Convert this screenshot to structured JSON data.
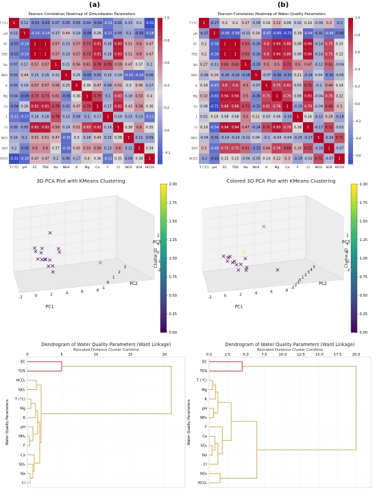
{
  "labels": {
    "panel_a": "(a)",
    "panel_b": "(b)"
  },
  "colors": {
    "heat_low": "#3b4cc0",
    "heat_mid": "#dddddd",
    "heat_high": "#b40426",
    "dendro_tan": "#c8a24a",
    "dendro_red": "#b22222"
  },
  "chart_data": [
    {
      "type": "heatmap",
      "title": "Pearson Correlation Heatmap of Groundwater Parameters",
      "categories": [
        "T (°C)",
        "pH",
        "EC",
        "TDS",
        "Na",
        "NH4",
        "K",
        "Mg",
        "Ca",
        "F",
        "Cl",
        "NO3",
        "SO4",
        "HCO3"
      ],
      "values": [
        [
          1.0,
          0.12,
          -0.03,
          -0.03,
          0.07,
          0.05,
          0.05,
          0.04,
          -0.04,
          -0.11,
          0.05,
          0.15,
          0.2,
          -0.31
        ],
        [
          0.12,
          1.0,
          -0.14,
          -0.14,
          0.17,
          0.44,
          0.19,
          -0.09,
          0.26,
          -0.17,
          0.05,
          0.1,
          -0.05,
          -0.18
        ],
        [
          -0.03,
          -0.14,
          1.0,
          1.0,
          0.57,
          0.15,
          0.57,
          0.73,
          0.91,
          0.16,
          0.93,
          0.51,
          0.6,
          0.47
        ],
        [
          -0.03,
          -0.14,
          1.0,
          1.0,
          0.57,
          0.15,
          0.57,
          0.73,
          0.91,
          0.16,
          0.93,
          0.51,
          0.6,
          0.47
        ],
        [
          0.07,
          0.17,
          0.57,
          0.57,
          1.0,
          0.21,
          0.56,
          0.61,
          0.78,
          0.78,
          0.59,
          0.47,
          0.37,
          0.2
        ],
        [
          0.05,
          0.44,
          0.15,
          0.15,
          0.21,
          1.0,
          0.25,
          -0.05,
          0.05,
          0.15,
          0.19,
          -0.15,
          -0.16,
          0.06
        ],
        [
          0.05,
          0.19,
          0.57,
          0.57,
          0.56,
          0.25,
          1.0,
          0.36,
          0.47,
          0.09,
          0.51,
          0.3,
          0.45,
          0.17
        ],
        [
          0.04,
          -0.09,
          0.73,
          0.73,
          0.61,
          -0.05,
          0.36,
          1.0,
          0.79,
          0.1,
          0.83,
          0.18,
          0.55,
          0.4
        ],
        [
          -0.04,
          0.26,
          0.91,
          0.91,
          0.78,
          0.05,
          0.47,
          0.79,
          1.0,
          0.17,
          0.92,
          0.43,
          0.58,
          0.36
        ],
        [
          -0.11,
          -0.17,
          0.16,
          0.16,
          0.78,
          0.15,
          0.09,
          0.1,
          0.17,
          1.0,
          0.19,
          0.15,
          0.13,
          -0.11
        ],
        [
          0.05,
          0.05,
          0.93,
          0.93,
          0.59,
          0.19,
          0.51,
          0.83,
          0.92,
          0.19,
          1.0,
          0.38,
          0.6,
          0.35
        ],
        [
          0.15,
          0.1,
          0.51,
          0.51,
          0.47,
          -0.15,
          0.3,
          0.18,
          0.43,
          0.15,
          0.38,
          1.0,
          0.11,
          0.09
        ],
        [
          0.2,
          -0.05,
          0.6,
          0.6,
          0.37,
          -0.16,
          0.45,
          0.55,
          0.58,
          0.13,
          0.6,
          0.11,
          1.0,
          0.34
        ],
        [
          -0.31,
          -0.18,
          0.47,
          0.47,
          0.2,
          0.06,
          0.17,
          0.4,
          0.36,
          -0.11,
          0.35,
          0.09,
          0.34,
          1.0
        ]
      ],
      "colorbar_ticks": [
        "1.0",
        "0.8",
        "0.6",
        "0.4",
        "0.2",
        "0.0",
        "-0.2"
      ],
      "vmin": -0.3,
      "vmax": 1.0
    },
    {
      "type": "heatmap",
      "title": "Pearson Correlation Heatmap of Water Quality Parameters",
      "categories": [
        "T (°C)",
        "pH",
        "EC",
        "TDS",
        "Na",
        "NH4",
        "K",
        "Mg",
        "Ca",
        "F",
        "Cl",
        "NO3",
        "SO4",
        "HCO3"
      ],
      "values": [
        [
          1.0,
          -0.27,
          0.2,
          0.2,
          0.27,
          -0.09,
          0.18,
          0.32,
          0.08,
          0.02,
          0.19,
          -0.04,
          0.3,
          -0.2
        ],
        [
          -0.27,
          1.0,
          -0.58,
          -0.58,
          -0.11,
          0.24,
          -0.47,
          -0.65,
          -0.71,
          0.19,
          -0.54,
          -0.31,
          -0.49,
          -0.43
        ],
        [
          0.2,
          -0.58,
          1.0,
          1.0,
          0.63,
          -0.26,
          0.8,
          0.94,
          0.88,
          0.08,
          0.94,
          -0.14,
          0.75,
          0.15
        ],
        [
          0.2,
          -0.58,
          1.0,
          1.0,
          0.63,
          -0.26,
          0.8,
          0.94,
          0.88,
          0.08,
          0.94,
          -0.14,
          0.75,
          0.15
        ],
        [
          0.27,
          -0.11,
          0.63,
          0.63,
          1.0,
          -0.28,
          0.5,
          0.5,
          0.72,
          0.5,
          0.47,
          -0.12,
          0.61,
          -0.04
        ],
        [
          -0.09,
          0.24,
          -0.26,
          -0.26,
          -0.28,
          1.0,
          -0.07,
          -0.36,
          -0.33,
          0.21,
          -0.24,
          0.04,
          -0.33,
          -0.05
        ],
        [
          0.18,
          -0.47,
          0.8,
          0.8,
          0.5,
          -0.07,
          1.0,
          0.75,
          0.81,
          0.03,
          0.71,
          -0.1,
          0.44,
          0.14
        ],
        [
          0.32,
          -0.65,
          0.94,
          0.94,
          0.5,
          -0.36,
          0.75,
          1.0,
          0.76,
          0.06,
          0.93,
          -0.04,
          0.76,
          0.22
        ],
        [
          0.08,
          -0.71,
          0.88,
          0.88,
          0.72,
          -0.33,
          0.81,
          0.76,
          1.0,
          -0.19,
          0.79,
          -0.04,
          0.69,
          0.3
        ],
        [
          0.02,
          0.19,
          0.08,
          0.08,
          0.5,
          0.21,
          0.03,
          0.06,
          -0.19,
          1.0,
          0.16,
          -0.15,
          0.29,
          -0.19
        ],
        [
          0.19,
          -0.54,
          0.94,
          0.94,
          0.47,
          -0.24,
          0.71,
          0.93,
          0.79,
          0.16,
          1.0,
          -0.17,
          0.72,
          -0.02
        ],
        [
          -0.04,
          -0.31,
          -0.14,
          -0.14,
          -0.12,
          0.04,
          -0.1,
          -0.04,
          -0.04,
          -0.15,
          -0.17,
          1.0,
          -0.16,
          0.71
        ],
        [
          0.3,
          -0.49,
          0.75,
          0.75,
          0.61,
          -0.33,
          0.44,
          0.76,
          0.69,
          0.29,
          0.72,
          -0.16,
          1.0,
          -0.07
        ],
        [
          -0.2,
          -0.43,
          0.15,
          0.15,
          -0.04,
          -0.05,
          0.14,
          0.22,
          0.3,
          -0.19,
          -0.02,
          0.71,
          -0.07,
          1.0
        ]
      ],
      "colorbar_ticks": [
        "1.0",
        "0.8",
        "0.6",
        "0.4",
        "0.2",
        "0.0",
        "-0.2",
        "-0.4",
        "-0.6"
      ],
      "vmin": -0.7,
      "vmax": 1.0
    },
    {
      "type": "scatter",
      "title": "3D PCA Plot with KMeans Clustering",
      "xlabel": "PC1",
      "ylabel": "PC2",
      "zlabel": "PC3",
      "x_ticks": [
        "-2",
        "0",
        "2",
        "4",
        "6",
        "8"
      ],
      "y_ticks": [
        "-1",
        "0",
        "1",
        "2",
        "3"
      ],
      "z_ticks": [
        "-2",
        "-1",
        "0",
        "1",
        "2"
      ],
      "colorbar_label": "Cluster ID",
      "colorbar_ticks": [
        "2.00",
        "1.75",
        "1.50",
        "1.25",
        "1.00",
        "0.75",
        "0.50",
        "0.25",
        "0.00"
      ],
      "points": [
        {
          "x": -2.0,
          "y": 0.5,
          "z": 1.2,
          "cluster": 0
        },
        {
          "x": -1.5,
          "y": 0.0,
          "z": 1.0,
          "cluster": 0
        },
        {
          "x": -1.2,
          "y": 1.0,
          "z": 0.9,
          "cluster": 0
        },
        {
          "x": -1.0,
          "y": 0.5,
          "z": 0.6,
          "cluster": 0
        },
        {
          "x": -0.8,
          "y": -0.5,
          "z": 0.3,
          "cluster": 0
        },
        {
          "x": -0.5,
          "y": 0.0,
          "z": 0.0,
          "cluster": 0
        },
        {
          "x": -0.3,
          "y": 0.5,
          "z": -0.2,
          "cluster": 0
        },
        {
          "x": 0.0,
          "y": 1.0,
          "z": -0.5,
          "cluster": 0
        },
        {
          "x": 0.3,
          "y": -0.5,
          "z": 0.2,
          "cluster": 0
        },
        {
          "x": 0.5,
          "y": 0.0,
          "z": -0.8,
          "cluster": 0
        },
        {
          "x": 0.8,
          "y": 0.5,
          "z": -1.0,
          "cluster": 0
        },
        {
          "x": 1.0,
          "y": 1.5,
          "z": 0.5,
          "cluster": 0
        },
        {
          "x": 1.2,
          "y": 0.0,
          "z": -1.5,
          "cluster": 0
        },
        {
          "x": 1.5,
          "y": 1.0,
          "z": 0.3,
          "cluster": 0
        },
        {
          "x": -1.0,
          "y": 2.5,
          "z": 2.0,
          "cluster": 0
        },
        {
          "x": 7.5,
          "y": 1.5,
          "z": -1.5,
          "cluster": 1
        }
      ]
    },
    {
      "type": "scatter",
      "title": "Colored 3D PCA Plot with KMeans Clustering",
      "xlabel": "PC1",
      "ylabel": "PC2",
      "zlabel": "PC3",
      "x_ticks": [
        "-2",
        "0",
        "2",
        "4",
        "6",
        "8"
      ],
      "y_ticks": [
        "-3",
        "-2",
        "-1",
        "0",
        "1",
        "2",
        "3",
        "4",
        "5"
      ],
      "z_ticks": [
        "-2",
        "-1",
        "0",
        "1",
        "2"
      ],
      "colorbar_label": "Cluster ID",
      "colorbar_ticks": [
        "2.00",
        "1.75",
        "1.50",
        "1.25",
        "1.00",
        "0.75",
        "0.50",
        "0.25",
        "0.00"
      ],
      "points": [
        {
          "x": -2.0,
          "y": 0.0,
          "z": 0.3,
          "cluster": 0
        },
        {
          "x": -1.5,
          "y": 0.5,
          "z": 0.0,
          "cluster": 0
        },
        {
          "x": -1.2,
          "y": -0.5,
          "z": -0.2,
          "cluster": 0
        },
        {
          "x": -1.0,
          "y": 0.0,
          "z": 0.2,
          "cluster": 0
        },
        {
          "x": -0.5,
          "y": 0.5,
          "z": -0.5,
          "cluster": 0
        },
        {
          "x": -0.2,
          "y": -1.0,
          "z": -0.3,
          "cluster": 0
        },
        {
          "x": 0.0,
          "y": 0.0,
          "z": -0.8,
          "cluster": 0
        },
        {
          "x": 0.3,
          "y": 1.0,
          "z": -1.0,
          "cluster": 0
        },
        {
          "x": 0.5,
          "y": -0.5,
          "z": -1.3,
          "cluster": 0
        },
        {
          "x": 1.0,
          "y": 0.5,
          "z": 0.5,
          "cluster": 2
        },
        {
          "x": 0.8,
          "y": 1.5,
          "z": -0.5,
          "cluster": 0
        },
        {
          "x": 1.5,
          "y": 0.0,
          "z": -1.5,
          "cluster": 0
        },
        {
          "x": 2.0,
          "y": -1.0,
          "z": -1.0,
          "cluster": 0
        },
        {
          "x": 2.5,
          "y": 4.5,
          "z": 2.3,
          "cluster": 1
        },
        {
          "x": 6.0,
          "y": 1.0,
          "z": -2.0,
          "cluster": 0
        }
      ]
    },
    {
      "type": "dendrogram",
      "title": "Dendrogram of Water Quality Parameters (Ward Linkage)",
      "xlabel": "Rescaled Distance Cluster Combine",
      "ylabel": "Water Quality Parameters",
      "x_ticks": [
        "0",
        "5",
        "10",
        "15",
        "20"
      ],
      "xlim": [
        0,
        23
      ],
      "leaves": [
        "EC",
        "TDS",
        "HCO₃",
        "NO₃",
        "T (°C)",
        "Mg",
        "K",
        "pH",
        "NH₄",
        "F",
        "Ca",
        "SO₄",
        "Na",
        "Cl"
      ],
      "merges": [
        {
          "a": 0,
          "b": 1,
          "height": 5.0,
          "red": true
        },
        {
          "a": 2,
          "b": 3,
          "height": 1.3
        },
        {
          "a": 4,
          "b": 5,
          "height": 0.5
        },
        {
          "a": 8,
          "b": 9,
          "height": 0.3
        },
        {
          "a": 7,
          "b": 17,
          "height": 0.8
        },
        {
          "a": 16,
          "b": 6,
          "height": 1.2
        },
        {
          "a": 19,
          "b": 18,
          "height": 1.5
        },
        {
          "a": 12,
          "b": 13,
          "height": 0.4
        },
        {
          "a": 11,
          "b": 21,
          "height": 0.8
        },
        {
          "a": 10,
          "b": 22,
          "height": 1.0
        },
        {
          "a": 20,
          "b": 23,
          "height": 1.8
        },
        {
          "a": 15,
          "b": 24,
          "height": 2.0
        },
        {
          "a": 14,
          "b": 25,
          "height": 21.0
        }
      ]
    },
    {
      "type": "dendrogram",
      "title": "Dendrogram of Water Quality Parameters (Ward Linkage)",
      "xlabel": "Rescaled Distance Cluster Combine",
      "ylabel": "Water Quality Parameters",
      "x_ticks": [
        "0.0",
        "2.5",
        "5.0",
        "7.5",
        "10.0",
        "12.5",
        "15.0",
        "17.5",
        "20.0"
      ],
      "xlim": [
        0,
        22
      ],
      "leaves": [
        "EC",
        "TDS",
        "T (°C)",
        "Mg",
        "K",
        "pH",
        "NH₄",
        "F",
        "Ca",
        "SO₄",
        "Na",
        "Cl",
        "NO₃",
        "HCO₃"
      ],
      "merges": [
        {
          "a": 0,
          "b": 1,
          "height": 4.5,
          "red": true
        },
        {
          "a": 2,
          "b": 3,
          "height": 0.5
        },
        {
          "a": 15,
          "b": 4,
          "height": 0.9
        },
        {
          "a": 5,
          "b": 6,
          "height": 0.6
        },
        {
          "a": 16,
          "b": 17,
          "height": 1.2
        },
        {
          "a": 9,
          "b": 10,
          "height": 0.4
        },
        {
          "a": 8,
          "b": 19,
          "height": 0.8
        },
        {
          "a": 20,
          "b": 11,
          "height": 1.2
        },
        {
          "a": 7,
          "b": 21,
          "height": 1.8
        },
        {
          "a": 18,
          "b": 22,
          "height": 3.0
        },
        {
          "a": 12,
          "b": 13,
          "height": 1.5
        },
        {
          "a": 23,
          "b": 24,
          "height": 6.5
        },
        {
          "a": 14,
          "b": 25,
          "height": 20.0
        }
      ]
    }
  ]
}
